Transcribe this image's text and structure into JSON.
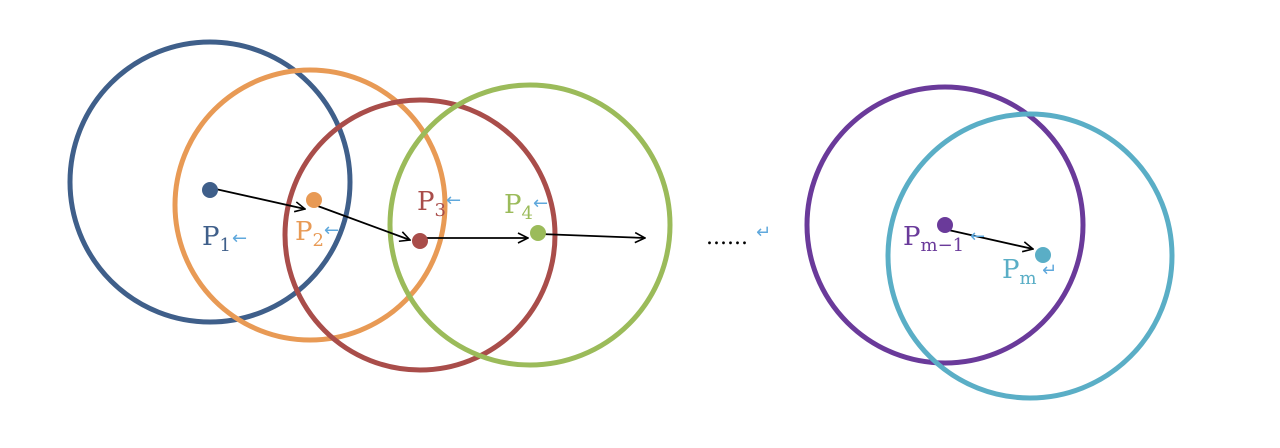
{
  "diagram": {
    "colors": {
      "p1": "#3f5f8a",
      "p2": "#e89a55",
      "p3": "#a94d4a",
      "p4": "#9bbb5a",
      "pm1": "#6a3a9a",
      "pm": "#5aaec6",
      "arrow": "#000000",
      "para_mark": "#5fa8dc"
    },
    "points": [
      {
        "id": "p1",
        "label": "P",
        "sub": "1"
      },
      {
        "id": "p2",
        "label": "P",
        "sub": "2"
      },
      {
        "id": "p3",
        "label": "P",
        "sub": "3"
      },
      {
        "id": "p4",
        "label": "P",
        "sub": "4"
      },
      {
        "id": "pm1",
        "label": "P",
        "sub": "m−1"
      },
      {
        "id": "pm",
        "label": "P",
        "sub": "m"
      }
    ],
    "ellipsis": "......",
    "return_mark": "↵",
    "left_mark": "⇠"
  }
}
